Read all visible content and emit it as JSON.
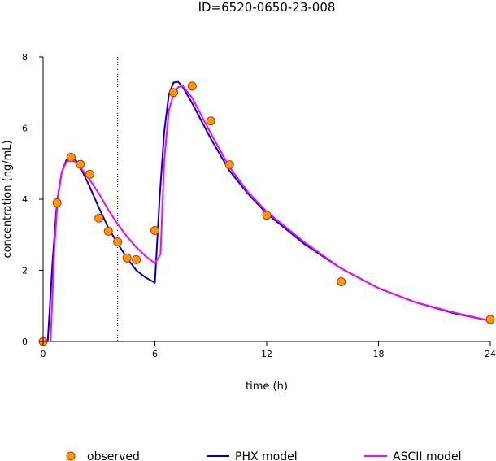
{
  "chart_data": {
    "type": "line",
    "title": "ID=6520-0650-23-008",
    "xlabel": "time (h)",
    "ylabel": "concentration (ng/mL)",
    "xlim": [
      0,
      24
    ],
    "ylim": [
      0,
      8
    ],
    "x_ticks": [
      0,
      6,
      12,
      18,
      24
    ],
    "y_ticks": [
      0,
      2,
      4,
      6,
      8
    ],
    "x_tick_labels": [
      "0",
      "6",
      "12",
      "18",
      "24"
    ],
    "y_tick_labels": [
      "0",
      "2",
      "4",
      "6",
      "8"
    ],
    "reference_line_x": 4,
    "legend_position": "bottom",
    "series": [
      {
        "name": "observed",
        "kind": "scatter",
        "color": "#ff9900",
        "edge_color": "#cc3300",
        "x": [
          0,
          0.75,
          1.5,
          2,
          2.5,
          3,
          3.5,
          4,
          4.5,
          5,
          6,
          7,
          8,
          9,
          10,
          12,
          16,
          24
        ],
        "y": [
          0,
          3.9,
          5.18,
          4.98,
          4.7,
          3.47,
          3.1,
          2.8,
          2.35,
          2.3,
          3.12,
          7.0,
          7.18,
          6.2,
          4.97,
          3.55,
          1.68,
          0.62
        ]
      },
      {
        "name": "PHX model",
        "kind": "line",
        "color": "#0000cc",
        "x": [
          0.25,
          0.5,
          0.75,
          1.0,
          1.25,
          1.5,
          1.75,
          2.0,
          2.5,
          3.0,
          3.5,
          4.0,
          4.5,
          5.0,
          5.5,
          6.0,
          6.25,
          6.5,
          6.75,
          7.0,
          7.25,
          7.5,
          8,
          9,
          10,
          11,
          12,
          14,
          16,
          18,
          20,
          22,
          24
        ],
        "y": [
          0,
          2.2,
          3.95,
          4.75,
          5.1,
          5.18,
          5.1,
          4.9,
          4.35,
          3.75,
          3.2,
          2.75,
          2.35,
          2.0,
          1.8,
          1.65,
          4.0,
          5.9,
          6.95,
          7.28,
          7.3,
          7.15,
          6.7,
          5.7,
          4.8,
          4.15,
          3.6,
          2.75,
          2.05,
          1.5,
          1.1,
          0.8,
          0.58
        ]
      },
      {
        "name": "ASCII model",
        "kind": "line",
        "color": "#ff00ff",
        "x": [
          0.4,
          0.6,
          0.8,
          1.0,
          1.25,
          1.5,
          1.75,
          2.0,
          2.5,
          3.0,
          3.5,
          4.0,
          4.5,
          5.0,
          5.5,
          6.0,
          6.3,
          6.5,
          6.75,
          7.0,
          7.25,
          7.5,
          8,
          9,
          10,
          11,
          12,
          14,
          16,
          18,
          20,
          22,
          24
        ],
        "y": [
          0,
          2.6,
          4.1,
          4.75,
          5.05,
          5.1,
          5.05,
          4.9,
          4.55,
          4.15,
          3.7,
          3.3,
          2.95,
          2.65,
          2.4,
          2.2,
          2.45,
          5.1,
          6.5,
          6.95,
          7.15,
          7.18,
          6.85,
          5.85,
          4.9,
          4.2,
          3.65,
          2.8,
          2.05,
          1.5,
          1.1,
          0.82,
          0.58
        ]
      }
    ]
  }
}
